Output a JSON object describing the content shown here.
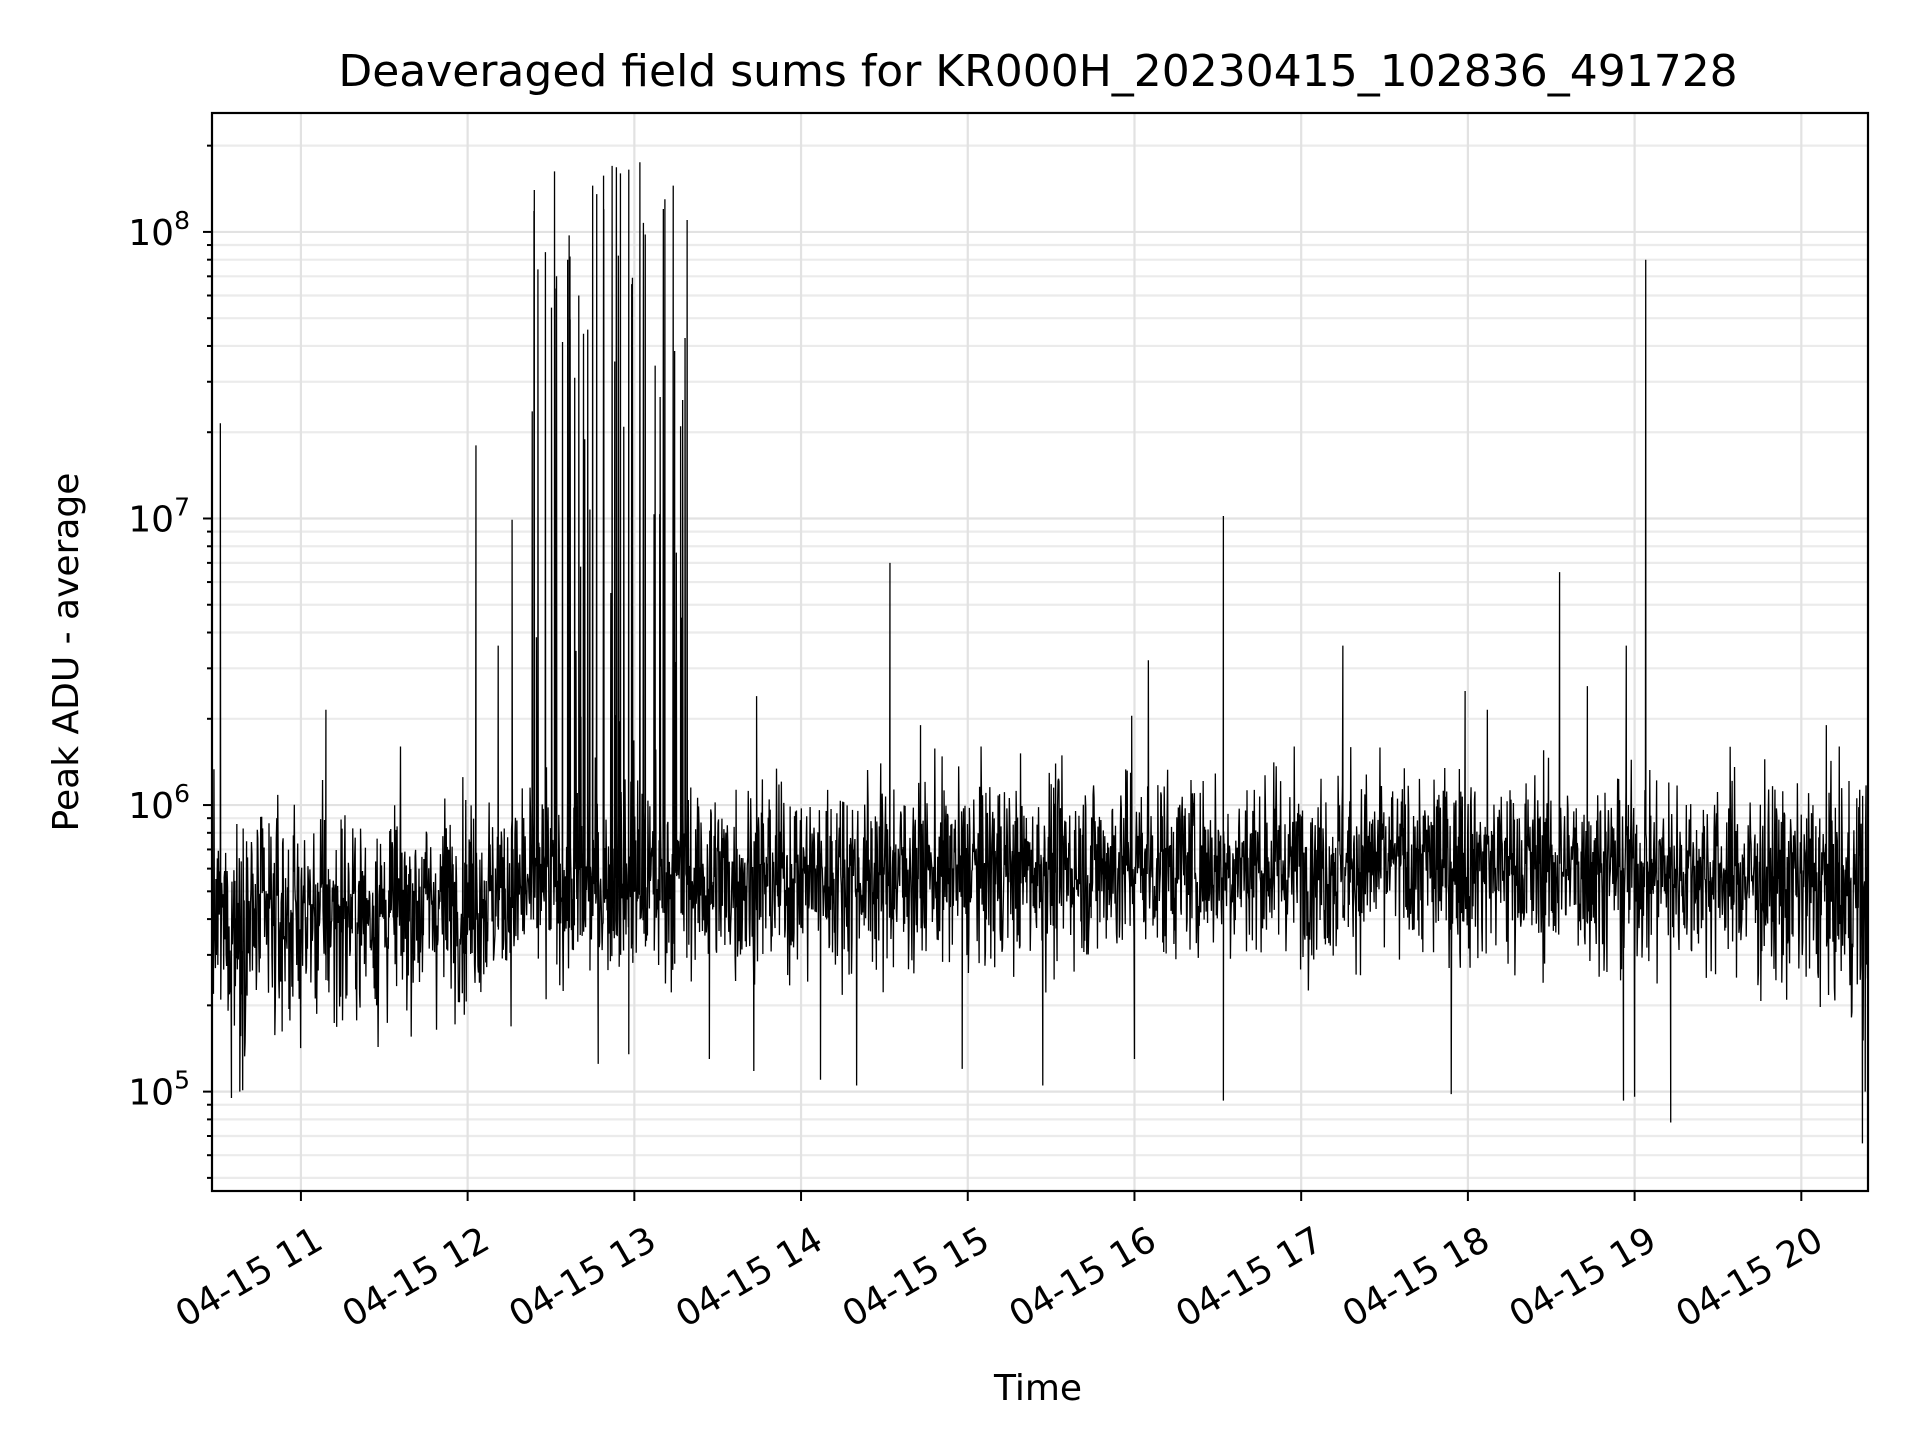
{
  "chart_data": {
    "type": "line",
    "title": "Deaveraged field sums for KR000H_20230415_102836_491728",
    "xlabel": "Time",
    "ylabel": "Peak ADU - average",
    "xscale": "time",
    "yscale": "log",
    "xlim": [
      "2023-04-15 10:28",
      "2023-04-15 20:24"
    ],
    "ylim": [
      45000,
      260000000
    ],
    "grid": "on (major and minor)",
    "line_color": "#000000",
    "x_tick_labels": [
      "04-15 11",
      "04-15 12",
      "04-15 13",
      "04-15 14",
      "04-15 15",
      "04-15 16",
      "04-15 17",
      "04-15 18",
      "04-15 19",
      "04-15 20"
    ],
    "x_ticks": [
      "2023-04-15 11:00",
      "2023-04-15 12:00",
      "2023-04-15 13:00",
      "2023-04-15 14:00",
      "2023-04-15 15:00",
      "2023-04-15 16:00",
      "2023-04-15 17:00",
      "2023-04-15 18:00",
      "2023-04-15 19:00",
      "2023-04-15 20:00"
    ],
    "y_ticks": [
      {
        "value": 100000,
        "base": "10",
        "exp": "5"
      },
      {
        "value": 1000000,
        "base": "10",
        "exp": "6"
      },
      {
        "value": 10000000,
        "base": "10",
        "exp": "7"
      },
      {
        "value": 100000000,
        "base": "10",
        "exp": "8"
      }
    ],
    "baseline": {
      "start_time": "2023-04-15 10:28",
      "end_time": "2023-04-15 20:24",
      "samples": 3400,
      "levels": [
        {
          "t": "2023-04-15 10:28",
          "median": 380000,
          "spread": 1.55
        },
        {
          "t": "2023-04-15 11:30",
          "median": 430000,
          "spread": 1.5
        },
        {
          "t": "2023-04-15 12:30",
          "median": 520000,
          "spread": 1.45
        },
        {
          "t": "2023-04-15 14:00",
          "median": 560000,
          "spread": 1.45
        },
        {
          "t": "2023-04-15 16:00",
          "median": 620000,
          "spread": 1.45
        },
        {
          "t": "2023-04-15 18:00",
          "median": 620000,
          "spread": 1.45
        },
        {
          "t": "2023-04-15 19:30",
          "median": 580000,
          "spread": 1.45
        },
        {
          "t": "2023-04-15 20:24",
          "median": 480000,
          "spread": 1.6
        }
      ]
    },
    "burst": {
      "start": "2023-04-15 12:23",
      "end": "2023-04-15 13:20",
      "samples": 60,
      "low": 1000000,
      "high": 170000000
    },
    "spikes": [
      {
        "t": "2023-04-15 10:31",
        "y": 21500000
      },
      {
        "t": "2023-04-15 11:09",
        "y": 2150000
      },
      {
        "t": "2023-04-15 12:03",
        "y": 18000000
      },
      {
        "t": "2023-04-15 12:11",
        "y": 3600000
      },
      {
        "t": "2023-04-15 12:16",
        "y": 9900000
      },
      {
        "t": "2023-04-15 12:24",
        "y": 140000000
      },
      {
        "t": "2023-04-15 12:28",
        "y": 85000000
      },
      {
        "t": "2023-04-15 12:32",
        "y": 70000000
      },
      {
        "t": "2023-04-15 12:36",
        "y": 80000000
      },
      {
        "t": "2023-04-15 12:40",
        "y": 60000000
      },
      {
        "t": "2023-04-15 12:45",
        "y": 145000000
      },
      {
        "t": "2023-04-15 12:49",
        "y": 120000000
      },
      {
        "t": "2023-04-15 12:52",
        "y": 170000000
      },
      {
        "t": "2023-04-15 12:55",
        "y": 160000000
      },
      {
        "t": "2023-04-15 12:58",
        "y": 165000000
      },
      {
        "t": "2023-04-15 13:02",
        "y": 175000000
      },
      {
        "t": "2023-04-15 13:11",
        "y": 130000000
      },
      {
        "t": "2023-04-15 13:14",
        "y": 145000000
      },
      {
        "t": "2023-04-15 13:19",
        "y": 110000000
      },
      {
        "t": "2023-04-15 13:44",
        "y": 2400000
      },
      {
        "t": "2023-04-15 14:32",
        "y": 7000000
      },
      {
        "t": "2023-04-15 14:43",
        "y": 1900000
      },
      {
        "t": "2023-04-15 15:59",
        "y": 2050000
      },
      {
        "t": "2023-04-15 16:05",
        "y": 3200000
      },
      {
        "t": "2023-04-15 16:32",
        "y": 10200000
      },
      {
        "t": "2023-04-15 17:15",
        "y": 3600000
      },
      {
        "t": "2023-04-15 17:59",
        "y": 2500000
      },
      {
        "t": "2023-04-15 18:07",
        "y": 2150000
      },
      {
        "t": "2023-04-15 18:33",
        "y": 6500000
      },
      {
        "t": "2023-04-15 18:43",
        "y": 2600000
      },
      {
        "t": "2023-04-15 18:57",
        "y": 3600000
      },
      {
        "t": "2023-04-15 19:04",
        "y": 80000000
      },
      {
        "t": "2023-04-15 20:09",
        "y": 1900000
      }
    ],
    "dips": [
      {
        "t": "2023-04-15 10:35",
        "y": 95000
      },
      {
        "t": "2023-04-15 10:38",
        "y": 100000
      },
      {
        "t": "2023-04-15 12:47",
        "y": 125000
      },
      {
        "t": "2023-04-15 12:58",
        "y": 135000
      },
      {
        "t": "2023-04-15 13:27",
        "y": 130000
      },
      {
        "t": "2023-04-15 13:43",
        "y": 118000
      },
      {
        "t": "2023-04-15 14:07",
        "y": 110000
      },
      {
        "t": "2023-04-15 14:20",
        "y": 105000
      },
      {
        "t": "2023-04-15 14:58",
        "y": 120000
      },
      {
        "t": "2023-04-15 15:27",
        "y": 105000
      },
      {
        "t": "2023-04-15 16:00",
        "y": 130000
      },
      {
        "t": "2023-04-15 16:32",
        "y": 93000
      },
      {
        "t": "2023-04-15 17:54",
        "y": 98000
      },
      {
        "t": "2023-04-15 18:56",
        "y": 93000
      },
      {
        "t": "2023-04-15 19:00",
        "y": 96000
      },
      {
        "t": "2023-04-15 19:13",
        "y": 78000
      },
      {
        "t": "2023-04-15 20:22",
        "y": 66000
      },
      {
        "t": "2023-04-15 20:23",
        "y": 100000
      }
    ]
  }
}
